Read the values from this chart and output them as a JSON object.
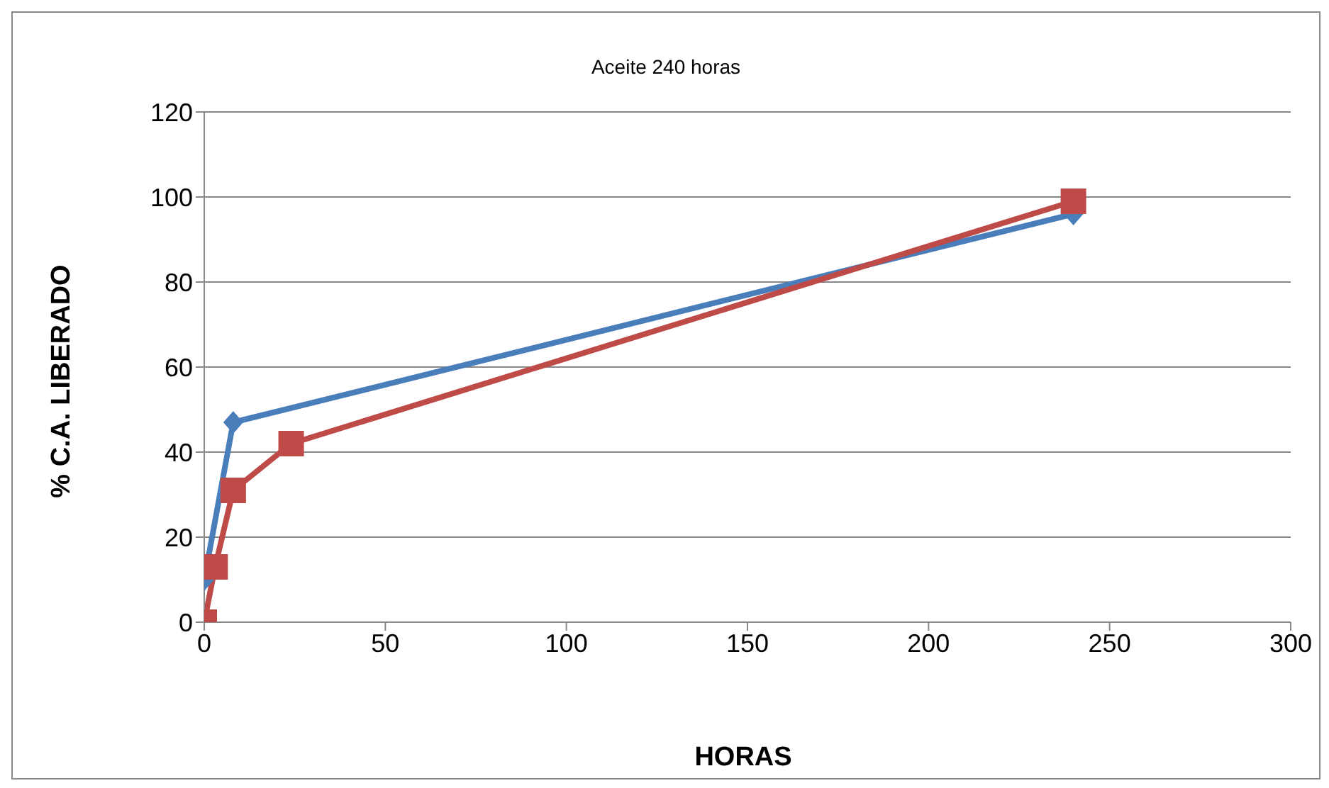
{
  "chart_data": {
    "type": "line",
    "title": "Aceite 240 horas",
    "xlabel": "HORAS",
    "ylabel": "% C.A. LIBERADO",
    "series": [
      {
        "color": "#4a7ebb",
        "marker": "diamond",
        "x": [
          0,
          8,
          240
        ],
        "values": [
          10,
          47,
          96
        ]
      },
      {
        "color": "#be4b48",
        "marker": "square",
        "x": [
          0,
          3,
          8,
          24,
          240
        ],
        "values": [
          0,
          13,
          31,
          42,
          99
        ]
      }
    ],
    "xlim": [
      0,
      300
    ],
    "xticks": [
      0,
      50,
      100,
      150,
      200,
      250,
      300
    ],
    "ylim": [
      0,
      120
    ],
    "yticks": [
      0,
      20,
      40,
      60,
      80,
      100,
      120
    ],
    "grid": "y",
    "legend": false
  }
}
